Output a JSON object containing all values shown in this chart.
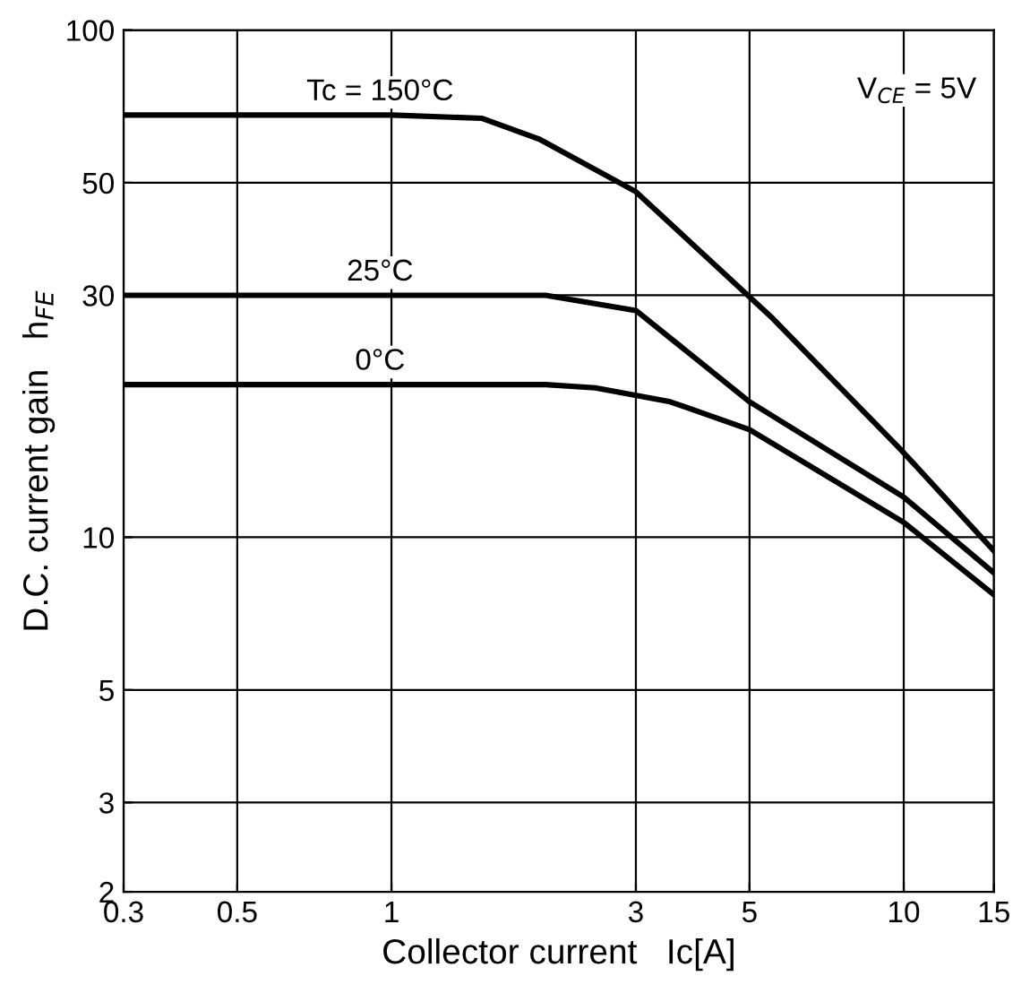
{
  "chart_data": {
    "type": "line",
    "xlabel": "Collector current   Ic[A]",
    "ylabel": "D.C. current gain   h$_{FE}$",
    "log": "xy",
    "xlim": [
      0.3,
      15
    ],
    "ylim": [
      2,
      100
    ],
    "xticks": [
      0.3,
      0.5,
      1,
      3,
      5,
      10,
      15
    ],
    "yticks": [
      2,
      3,
      5,
      10,
      30,
      50,
      100
    ],
    "grid": true,
    "legend": false,
    "marker": "none",
    "line_style": "solid",
    "annotations": [
      "V$_{CE}$ = 5V"
    ],
    "series": [
      {
        "name": "Tc = 150°C",
        "color": "#000000",
        "x": [
          0.3,
          0.5,
          1,
          1.5,
          1.94,
          3,
          5.55,
          9.8,
          15
        ],
        "values": [
          68,
          68,
          68,
          67,
          61,
          48,
          27,
          15,
          9.4
        ]
      },
      {
        "name": "25°C",
        "color": "#000000",
        "x": [
          0.3,
          0.5,
          1,
          2,
          3,
          5,
          10,
          15
        ],
        "values": [
          30,
          30,
          30,
          30,
          28,
          18.5,
          12,
          8.5
        ]
      },
      {
        "name": "0°C",
        "color": "#000000",
        "x": [
          0.3,
          0.5,
          1,
          2,
          2.5,
          3.5,
          5,
          10,
          15
        ],
        "values": [
          20,
          20,
          20,
          20,
          19.7,
          18.5,
          16.3,
          10.7,
          7.7
        ]
      }
    ]
  }
}
